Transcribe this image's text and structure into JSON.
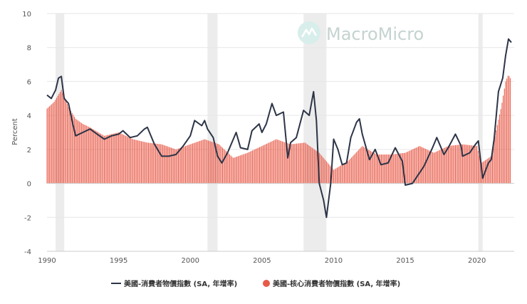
{
  "brand": {
    "watermark": "MacroMicro",
    "logo_color": "#8fd3cc"
  },
  "colors": {
    "cpi_line": "#2c3447",
    "core_bars": "#e85a48",
    "recession": "#ececec",
    "grid": "#e6e6e6",
    "zero_line": "#d0d0d0"
  },
  "chart_data": {
    "type": "bar+line",
    "title": "",
    "xlabel": "",
    "ylabel": "Percent",
    "ylim": [
      -4,
      10
    ],
    "yticks": [
      -4,
      -2,
      0,
      2,
      4,
      6,
      8,
      10
    ],
    "xlim": [
      1990,
      2022.6
    ],
    "xticks": [
      1990,
      1995,
      2000,
      2005,
      2010,
      2015,
      2020
    ],
    "grid": true,
    "legend_position": "bottom",
    "recessions": [
      [
        1990.6,
        1991.2
      ],
      [
        2001.2,
        2001.9
      ],
      [
        2007.9,
        2009.5
      ],
      [
        2020.1,
        2020.4
      ]
    ],
    "series": [
      {
        "name": "美國-消費者物價指數 (SA, 年增率)",
        "kind": "line",
        "points": [
          [
            1990.0,
            5.2
          ],
          [
            1990.3,
            5.0
          ],
          [
            1990.6,
            5.5
          ],
          [
            1990.8,
            6.2
          ],
          [
            1991.0,
            6.3
          ],
          [
            1991.2,
            5.0
          ],
          [
            1991.5,
            4.7
          ],
          [
            1991.8,
            3.5
          ],
          [
            1992.0,
            2.8
          ],
          [
            1992.5,
            3.0
          ],
          [
            1993.0,
            3.2
          ],
          [
            1993.5,
            2.9
          ],
          [
            1994.0,
            2.6
          ],
          [
            1994.5,
            2.8
          ],
          [
            1995.0,
            2.9
          ],
          [
            1995.3,
            3.1
          ],
          [
            1995.8,
            2.7
          ],
          [
            1996.3,
            2.8
          ],
          [
            1996.8,
            3.2
          ],
          [
            1997.0,
            3.3
          ],
          [
            1997.5,
            2.3
          ],
          [
            1998.0,
            1.6
          ],
          [
            1998.5,
            1.6
          ],
          [
            1999.0,
            1.7
          ],
          [
            1999.5,
            2.2
          ],
          [
            2000.0,
            2.8
          ],
          [
            2000.3,
            3.7
          ],
          [
            2000.8,
            3.4
          ],
          [
            2001.0,
            3.7
          ],
          [
            2001.2,
            3.2
          ],
          [
            2001.6,
            2.7
          ],
          [
            2001.9,
            1.6
          ],
          [
            2002.2,
            1.2
          ],
          [
            2002.6,
            1.8
          ],
          [
            2003.0,
            2.6
          ],
          [
            2003.2,
            3.0
          ],
          [
            2003.5,
            2.1
          ],
          [
            2004.0,
            2.0
          ],
          [
            2004.3,
            3.1
          ],
          [
            2004.8,
            3.5
          ],
          [
            2005.0,
            3.0
          ],
          [
            2005.3,
            3.5
          ],
          [
            2005.7,
            4.7
          ],
          [
            2006.0,
            4.0
          ],
          [
            2006.5,
            4.2
          ],
          [
            2006.8,
            1.5
          ],
          [
            2007.0,
            2.4
          ],
          [
            2007.4,
            2.7
          ],
          [
            2007.9,
            4.3
          ],
          [
            2008.3,
            4.0
          ],
          [
            2008.6,
            5.4
          ],
          [
            2008.8,
            3.7
          ],
          [
            2009.0,
            0.0
          ],
          [
            2009.3,
            -1.0
          ],
          [
            2009.5,
            -2.0
          ],
          [
            2009.8,
            0.0
          ],
          [
            2010.0,
            2.6
          ],
          [
            2010.3,
            2.0
          ],
          [
            2010.6,
            1.1
          ],
          [
            2010.9,
            1.2
          ],
          [
            2011.2,
            2.7
          ],
          [
            2011.6,
            3.6
          ],
          [
            2011.8,
            3.8
          ],
          [
            2012.0,
            2.9
          ],
          [
            2012.5,
            1.4
          ],
          [
            2012.9,
            2.0
          ],
          [
            2013.3,
            1.1
          ],
          [
            2013.8,
            1.2
          ],
          [
            2014.3,
            2.1
          ],
          [
            2014.8,
            1.3
          ],
          [
            2015.0,
            -0.1
          ],
          [
            2015.5,
            0.0
          ],
          [
            2015.9,
            0.5
          ],
          [
            2016.3,
            1.0
          ],
          [
            2016.9,
            2.1
          ],
          [
            2017.2,
            2.7
          ],
          [
            2017.7,
            1.7
          ],
          [
            2018.0,
            2.1
          ],
          [
            2018.5,
            2.9
          ],
          [
            2018.9,
            2.2
          ],
          [
            2019.0,
            1.6
          ],
          [
            2019.5,
            1.8
          ],
          [
            2019.9,
            2.3
          ],
          [
            2020.1,
            2.5
          ],
          [
            2020.4,
            0.3
          ],
          [
            2020.8,
            1.2
          ],
          [
            2021.0,
            1.4
          ],
          [
            2021.2,
            2.6
          ],
          [
            2021.5,
            5.4
          ],
          [
            2021.8,
            6.2
          ],
          [
            2022.0,
            7.5
          ],
          [
            2022.2,
            8.5
          ],
          [
            2022.4,
            8.3
          ]
        ]
      },
      {
        "name": "美國-核心消費者物價指數 (SA, 年增率)",
        "kind": "bar",
        "points": [
          [
            1990.0,
            4.4
          ],
          [
            1990.5,
            4.8
          ],
          [
            1991.0,
            5.5
          ],
          [
            1991.5,
            4.5
          ],
          [
            1992.0,
            3.8
          ],
          [
            1992.5,
            3.5
          ],
          [
            1993.0,
            3.3
          ],
          [
            1994.0,
            2.8
          ],
          [
            1995.0,
            3.0
          ],
          [
            1996.0,
            2.6
          ],
          [
            1997.0,
            2.4
          ],
          [
            1998.0,
            2.3
          ],
          [
            1999.0,
            2.0
          ],
          [
            2000.0,
            2.3
          ],
          [
            2001.0,
            2.6
          ],
          [
            2002.0,
            2.3
          ],
          [
            2003.0,
            1.5
          ],
          [
            2004.0,
            1.8
          ],
          [
            2005.0,
            2.2
          ],
          [
            2006.0,
            2.6
          ],
          [
            2007.0,
            2.3
          ],
          [
            2008.0,
            2.4
          ],
          [
            2009.0,
            1.8
          ],
          [
            2010.0,
            0.8
          ],
          [
            2011.0,
            1.3
          ],
          [
            2012.0,
            2.2
          ],
          [
            2013.0,
            1.7
          ],
          [
            2014.0,
            1.7
          ],
          [
            2015.0,
            1.8
          ],
          [
            2016.0,
            2.2
          ],
          [
            2017.0,
            1.8
          ],
          [
            2018.0,
            2.2
          ],
          [
            2019.0,
            2.3
          ],
          [
            2020.0,
            2.2
          ],
          [
            2020.3,
            1.2
          ],
          [
            2021.0,
            1.6
          ],
          [
            2021.3,
            3.0
          ],
          [
            2021.7,
            4.5
          ],
          [
            2022.0,
            6.0
          ],
          [
            2022.2,
            6.4
          ],
          [
            2022.4,
            6.1
          ]
        ]
      }
    ]
  },
  "legend": {
    "line_label": "美國-消費者物價指數 (SA, 年增率)",
    "bar_label": "美國-核心消費者物價指數 (SA, 年增率)"
  }
}
